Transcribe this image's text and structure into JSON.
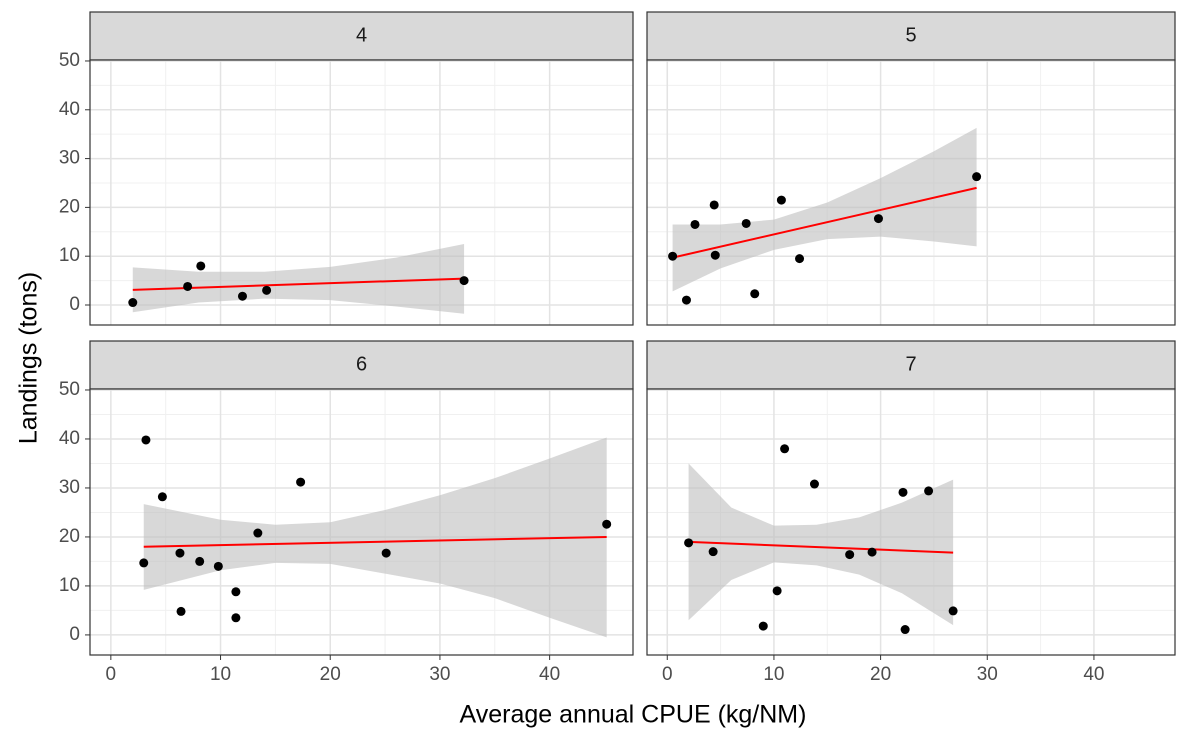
{
  "x_label": "Average annual CPUE (kg/NM)",
  "y_label": "Landings (tons)",
  "chart_data": [
    {
      "type": "scatter",
      "title": "4",
      "color": "#000000",
      "x": [
        2,
        7,
        8.2,
        12,
        14.2,
        32.2
      ],
      "y": [
        0.5,
        3.8,
        8,
        1.8,
        3,
        5
      ],
      "fit": {
        "x": [
          2,
          32.2
        ],
        "y": [
          3.1,
          5.4
        ],
        "color": "#ff0000"
      },
      "band": {
        "x": [
          2,
          8,
          14,
          20,
          26,
          32.2
        ],
        "upper": [
          7.7,
          6.8,
          6.8,
          7.8,
          9.7,
          12.5
        ],
        "lower": [
          -1.5,
          0.5,
          1.3,
          1,
          -0.3,
          -1.8
        ],
        "color": "#bebebe"
      },
      "xlim": [
        -1.9,
        47.6
      ],
      "ylim": [
        -4.1,
        50.2
      ],
      "xticks": [
        0,
        10,
        20,
        30,
        40
      ],
      "yticks": [
        0,
        10,
        20,
        30,
        40,
        50
      ],
      "grid": true
    },
    {
      "type": "scatter",
      "title": "5",
      "color": "#000000",
      "x": [
        0.5,
        1.8,
        2.6,
        4.4,
        4.5,
        7.4,
        8.2,
        10.7,
        12.4,
        19.8,
        29
      ],
      "y": [
        10,
        1,
        16.5,
        20.5,
        10.2,
        16.7,
        2.3,
        21.5,
        9.5,
        17.7,
        26.3
      ],
      "fit": {
        "x": [
          0.5,
          29
        ],
        "y": [
          9.7,
          24
        ],
        "color": "#ff0000"
      },
      "band": {
        "x": [
          0.5,
          5,
          10,
          15,
          20,
          25,
          29
        ],
        "upper": [
          16.5,
          16.5,
          17.5,
          21,
          26,
          31.5,
          36.3
        ],
        "lower": [
          2.8,
          7.5,
          11.3,
          13.5,
          14,
          13,
          12
        ],
        "color": "#bebebe"
      },
      "xlim": [
        -1.9,
        47.6
      ],
      "ylim": [
        -4.1,
        50.2
      ],
      "xticks": [
        0,
        10,
        20,
        30,
        40
      ],
      "yticks": [
        0,
        10,
        20,
        30,
        40,
        50
      ],
      "grid": true
    },
    {
      "type": "scatter",
      "title": "6",
      "color": "#000000",
      "x": [
        3,
        3.2,
        4.7,
        6.3,
        6.4,
        8.1,
        9.8,
        11.4,
        11.4,
        13.4,
        17.3,
        25.1,
        45.2
      ],
      "y": [
        14.7,
        39.8,
        28.2,
        16.7,
        4.8,
        15,
        14,
        8.8,
        3.5,
        20.8,
        31.2,
        16.7,
        22.6
      ],
      "fit": {
        "x": [
          3,
          45.2
        ],
        "y": [
          18,
          20
        ],
        "color": "#ff0000"
      },
      "band": {
        "x": [
          3,
          10,
          15,
          20,
          25,
          30,
          35,
          40,
          45.2
        ],
        "upper": [
          26.7,
          23.5,
          22.5,
          23,
          25.5,
          28.5,
          32,
          36,
          40.3
        ],
        "lower": [
          9.2,
          13.2,
          14.7,
          14.5,
          12.5,
          10.5,
          7.5,
          3.5,
          -0.5
        ],
        "color": "#bebebe"
      },
      "xlim": [
        -1.9,
        47.6
      ],
      "ylim": [
        -4.1,
        50.2
      ],
      "xticks": [
        0,
        10,
        20,
        30,
        40
      ],
      "yticks": [
        0,
        10,
        20,
        30,
        40,
        50
      ],
      "grid": true
    },
    {
      "type": "scatter",
      "title": "7",
      "color": "#000000",
      "x": [
        2,
        4.3,
        9,
        10.3,
        11,
        13.8,
        17.1,
        19.2,
        22.1,
        22.3,
        24.5,
        26.8
      ],
      "y": [
        18.8,
        17,
        1.8,
        9,
        38,
        30.8,
        16.4,
        16.9,
        29.1,
        1.1,
        29.4,
        4.9
      ],
      "fit": {
        "x": [
          2,
          26.8
        ],
        "y": [
          19,
          16.8
        ],
        "color": "#ff0000"
      },
      "band": {
        "x": [
          2,
          6,
          10,
          14,
          18,
          22,
          26.8
        ],
        "upper": [
          35,
          26,
          22.3,
          22.5,
          24,
          27,
          31.7
        ],
        "lower": [
          3,
          11.2,
          14.8,
          14.2,
          12.3,
          8.5,
          2
        ],
        "color": "#bebebe"
      },
      "xlim": [
        -1.9,
        47.6
      ],
      "ylim": [
        -4.1,
        50.2
      ],
      "xticks": [
        0,
        10,
        20,
        30,
        40
      ],
      "yticks": [
        0,
        10,
        20,
        30,
        40,
        50
      ],
      "grid": true
    }
  ]
}
